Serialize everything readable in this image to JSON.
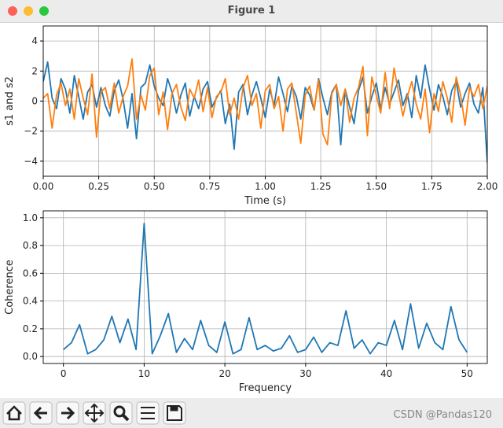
{
  "window": {
    "title": "Figure 1"
  },
  "watermark": "CSDN @Pandas120",
  "chart_data": [
    {
      "type": "line",
      "ylabel": "s1 and s2",
      "xlabel": "Time (s)",
      "x": [
        0,
        0.02,
        0.04,
        0.06,
        0.08,
        0.1,
        0.12,
        0.14,
        0.16,
        0.18,
        0.2,
        0.22,
        0.24,
        0.26,
        0.28,
        0.3,
        0.32,
        0.34,
        0.36,
        0.38,
        0.4,
        0.42,
        0.44,
        0.46,
        0.48,
        0.5,
        0.52,
        0.54,
        0.56,
        0.58,
        0.6,
        0.62,
        0.64,
        0.66,
        0.68,
        0.7,
        0.72,
        0.74,
        0.76,
        0.78,
        0.8,
        0.82,
        0.84,
        0.86,
        0.88,
        0.9,
        0.92,
        0.94,
        0.96,
        0.98,
        1,
        1.02,
        1.04,
        1.06,
        1.08,
        1.1,
        1.12,
        1.14,
        1.16,
        1.18,
        1.2,
        1.22,
        1.24,
        1.26,
        1.28,
        1.3,
        1.32,
        1.34,
        1.36,
        1.38,
        1.4,
        1.42,
        1.44,
        1.46,
        1.48,
        1.5,
        1.52,
        1.54,
        1.56,
        1.58,
        1.6,
        1.62,
        1.64,
        1.66,
        1.68,
        1.7,
        1.72,
        1.74,
        1.76,
        1.78,
        1.8,
        1.82,
        1.84,
        1.86,
        1.88,
        1.9,
        1.92,
        1.94,
        1.96,
        1.98,
        2
      ],
      "series": [
        {
          "color": "#1f77b4",
          "values": [
            1.3,
            2.6,
            0.2,
            -0.5,
            1.5,
            0.8,
            -0.8,
            1.7,
            0.3,
            -1.2,
            0.6,
            1.1,
            -0.4,
            0.9,
            -0.3,
            -1.0,
            0.7,
            1.4,
            0.1,
            -1.8,
            0.5,
            -2.5,
            0.9,
            1.2,
            2.4,
            1.0,
            0.2,
            -0.3,
            1.5,
            0.6,
            -0.8,
            0.4,
            1.2,
            -1.0,
            0.3,
            -0.5,
            0.8,
            1.3,
            -0.4,
            0.2,
            0.7,
            -1.5,
            -0.2,
            -3.2,
            0.6,
            1.1,
            -0.9,
            0.4,
            1.3,
            0.2,
            -1.1,
            0.8,
            -0.3,
            1.6,
            0.5,
            -0.7,
            1.0,
            0.3,
            -1.2,
            0.9,
            0.4,
            -0.6,
            1.5,
            0.2,
            -0.9,
            0.6,
            1.1,
            -2.9,
            0.8,
            -0.4,
            -1.5,
            0.7,
            1.6,
            -0.8,
            0.3,
            1.2,
            -0.5,
            0.9,
            -0.2,
            0.6,
            1.4,
            -0.3,
            0.5,
            -1.1,
            1.7,
            0.2,
            2.4,
            0.8,
            -0.6,
            1.1,
            0.3,
            -0.9,
            0.7,
            1.3,
            -0.4,
            0.5,
            1.2,
            -0.2,
            -0.8,
            0.9,
            -4.1
          ]
        },
        {
          "color": "#ff7f0e",
          "values": [
            0.2,
            0.5,
            -1.8,
            0.4,
            1.2,
            -0.3,
            0.8,
            -1.2,
            1.5,
            0.2,
            -0.9,
            1.8,
            -2.4,
            0.6,
            0.9,
            -0.5,
            1.2,
            -0.8,
            0.3,
            1.0,
            2.8,
            -1.2,
            0.4,
            -0.6,
            1.7,
            2.2,
            -0.9,
            0.6,
            -1.9,
            0.5,
            1.1,
            -0.4,
            -1.3,
            0.8,
            0.2,
            1.4,
            -0.7,
            0.9,
            -1.1,
            0.3,
            0.6,
            1.5,
            -0.9,
            0.2,
            -1.2,
            0.9,
            1.7,
            -0.3,
            0.5,
            -1.8,
            0.7,
            1.1,
            -0.5,
            0.3,
            -2.0,
            0.8,
            1.2,
            -0.8,
            -2.8,
            0.4,
            1.0,
            -0.6,
            1.4,
            -2.2,
            -2.9,
            0.5,
            1.1,
            -0.3,
            0.8,
            -1.4,
            0.2,
            0.9,
            2.3,
            -2.3,
            1.6,
            0.4,
            -0.8,
            1.9,
            -0.5,
            2.2,
            0.6,
            -1.0,
            0.3,
            1.3,
            -0.2,
            -1.2,
            0.8,
            -2.1,
            0.5,
            -0.7,
            1.3,
            0.2,
            -1.4,
            1.6,
            0.4,
            -1.6,
            0.9,
            0.3,
            1.1,
            -0.5,
            1.0
          ]
        }
      ],
      "xlim": [
        0,
        2
      ],
      "xticks": [
        {
          "value": 0,
          "label": "0.00"
        },
        {
          "value": 0.25,
          "label": "0.25"
        },
        {
          "value": 0.5,
          "label": "0.50"
        },
        {
          "value": 0.75,
          "label": "0.75"
        },
        {
          "value": 1,
          "label": "1.00"
        },
        {
          "value": 1.25,
          "label": "1.25"
        },
        {
          "value": 1.5,
          "label": "1.50"
        },
        {
          "value": 1.75,
          "label": "1.75"
        },
        {
          "value": 2,
          "label": "2.00"
        }
      ],
      "ylim": [
        -5,
        5
      ],
      "yticks": [
        {
          "value": -4,
          "label": "−4"
        },
        {
          "value": -2,
          "label": "−2"
        },
        0,
        2,
        4
      ],
      "grid": true
    },
    {
      "type": "line",
      "ylabel": "Coherence",
      "xlabel": "Frequency",
      "x": [
        0,
        1,
        2,
        3,
        4,
        5,
        6,
        7,
        8,
        9,
        10,
        11,
        12,
        13,
        14,
        15,
        16,
        17,
        18,
        19,
        20,
        21,
        22,
        23,
        24,
        25,
        26,
        27,
        28,
        29,
        30,
        31,
        32,
        33,
        34,
        35,
        36,
        37,
        38,
        39,
        40,
        41,
        42,
        43,
        44,
        45,
        46,
        47,
        48,
        49,
        50
      ],
      "series": [
        {
          "color": "#1f77b4",
          "values": [
            0.05,
            0.1,
            0.23,
            0.02,
            0.05,
            0.12,
            0.29,
            0.1,
            0.27,
            0.05,
            0.96,
            0.02,
            0.15,
            0.31,
            0.03,
            0.13,
            0.05,
            0.26,
            0.08,
            0.03,
            0.25,
            0.02,
            0.05,
            0.28,
            0.05,
            0.08,
            0.04,
            0.06,
            0.15,
            0.03,
            0.05,
            0.14,
            0.03,
            0.1,
            0.08,
            0.33,
            0.06,
            0.12,
            0.02,
            0.1,
            0.08,
            0.26,
            0.05,
            0.38,
            0.06,
            0.24,
            0.1,
            0.05,
            0.36,
            0.12,
            0.03
          ]
        }
      ],
      "xlim": [
        -2.5,
        52.5
      ],
      "xticks": [
        0,
        10,
        20,
        30,
        40,
        50
      ],
      "ylim": [
        -0.05,
        1.05
      ],
      "yticks": [
        {
          "value": 0,
          "label": "0.0"
        },
        0.2,
        0.4,
        0.6,
        0.8,
        {
          "value": 1,
          "label": "1.0"
        }
      ],
      "grid": true
    }
  ]
}
